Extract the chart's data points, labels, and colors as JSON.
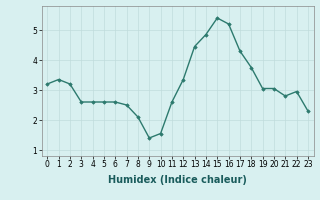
{
  "x": [
    0,
    1,
    2,
    3,
    4,
    5,
    6,
    7,
    8,
    9,
    10,
    11,
    12,
    13,
    14,
    15,
    16,
    17,
    18,
    19,
    20,
    21,
    22,
    23
  ],
  "y": [
    3.2,
    3.35,
    3.2,
    2.6,
    2.6,
    2.6,
    2.6,
    2.5,
    2.1,
    1.4,
    1.55,
    2.6,
    3.35,
    4.45,
    4.85,
    5.4,
    5.2,
    4.3,
    3.75,
    3.05,
    3.05,
    2.8,
    2.95,
    2.3
  ],
  "line_color": "#2d7a6e",
  "marker": "D",
  "marker_size": 1.8,
  "linewidth": 1.0,
  "xlabel": "Humidex (Indice chaleur)",
  "xlabel_fontsize": 7,
  "xlabel_bold": true,
  "xlim": [
    -0.5,
    23.5
  ],
  "ylim": [
    0.8,
    5.8
  ],
  "yticks": [
    1,
    2,
    3,
    4,
    5
  ],
  "xticks": [
    0,
    1,
    2,
    3,
    4,
    5,
    6,
    7,
    8,
    9,
    10,
    11,
    12,
    13,
    14,
    15,
    16,
    17,
    18,
    19,
    20,
    21,
    22,
    23
  ],
  "tick_fontsize": 5.5,
  "background_color": "#d8f0f0",
  "grid_color": "#c0dcdc",
  "grid_linewidth": 0.5,
  "spine_color": "#888888"
}
